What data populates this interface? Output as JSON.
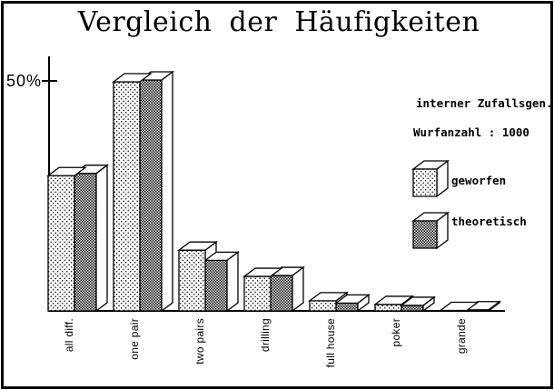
{
  "page": {
    "title": "Vergleich der Häufigkeiten"
  },
  "colors": {
    "ink": "#000000",
    "paper": "#ffffff"
  },
  "chart_data": {
    "type": "bar",
    "projection": "3d",
    "title": "Vergleich der Häufigkeiten",
    "categories": [
      "all diff.",
      "one pair",
      "two pairs",
      "drilling",
      "full house",
      "poker",
      "grande"
    ],
    "series": [
      {
        "name": "geworfen",
        "style": "dotted",
        "values": [
          29.4,
          49.8,
          13.2,
          7.5,
          2.2,
          1.4,
          0.1
        ]
      },
      {
        "name": "theoretisch",
        "style": "hatched",
        "values": [
          29.9,
          50.2,
          11.0,
          7.7,
          1.7,
          1.2,
          0.25
        ]
      }
    ],
    "xlabel": "",
    "ylabel": "",
    "y_tick": {
      "label": "50%",
      "value": 50
    },
    "ylim": [
      0,
      55
    ],
    "grid": false,
    "legend_position": "right",
    "annotations": [
      "interner Zufallsgen.",
      "Wurfanzahl : 1000"
    ]
  }
}
